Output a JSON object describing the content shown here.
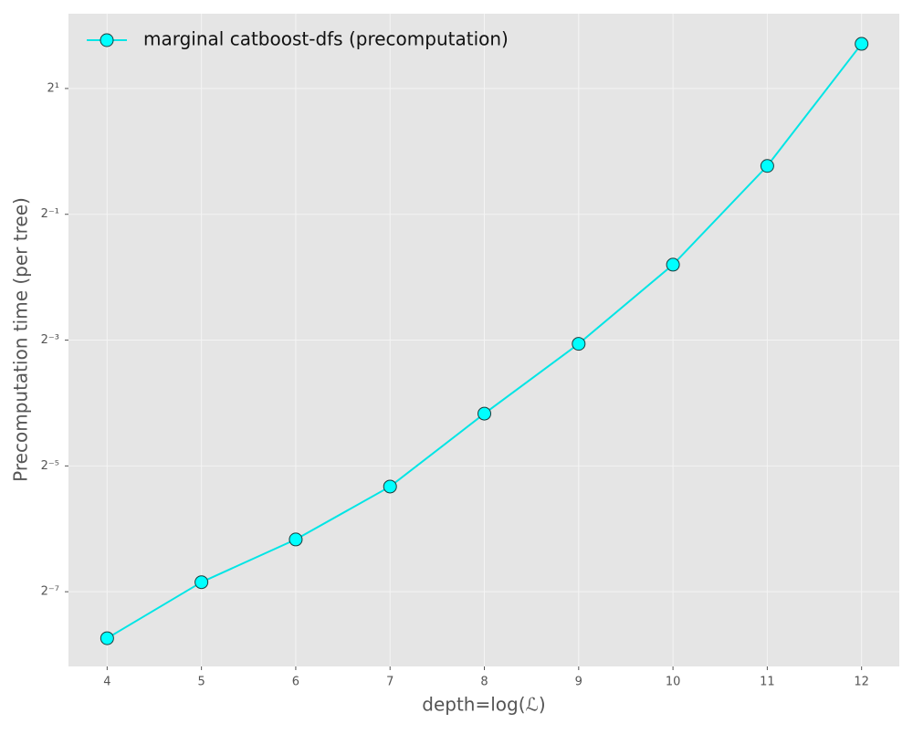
{
  "chart_data": {
    "type": "line",
    "xlabel": "depth=log(ℒ)",
    "ylabel": "Precomputation time (per tree)",
    "x": [
      4,
      5,
      6,
      7,
      8,
      9,
      10,
      11,
      12
    ],
    "series": [
      {
        "name": "marginal catboost-dfs (precomputation)",
        "color": "#00e5e5",
        "marker_color": "#00ffff",
        "values": [
          0.00468,
          0.00868,
          0.0139,
          0.0249,
          0.0556,
          0.12,
          0.287,
          0.852,
          3.27
        ]
      }
    ],
    "xlim": [
      3.59,
      12.4
    ],
    "xticks": [
      4,
      5,
      6,
      7,
      8,
      9,
      10,
      11,
      12
    ],
    "ylim": [
      0.00343,
      4.56
    ],
    "yscale": "log",
    "log_base": 2,
    "yticks": [
      {
        "value": 0.0078125,
        "label": "2⁻⁷"
      },
      {
        "value": 0.03125,
        "label": "2⁻⁵"
      },
      {
        "value": 0.125,
        "label": "2⁻³"
      },
      {
        "value": 0.5,
        "label": "2⁻¹"
      },
      {
        "value": 2,
        "label": "2¹"
      }
    ],
    "grid": true,
    "legend": "upper left"
  }
}
